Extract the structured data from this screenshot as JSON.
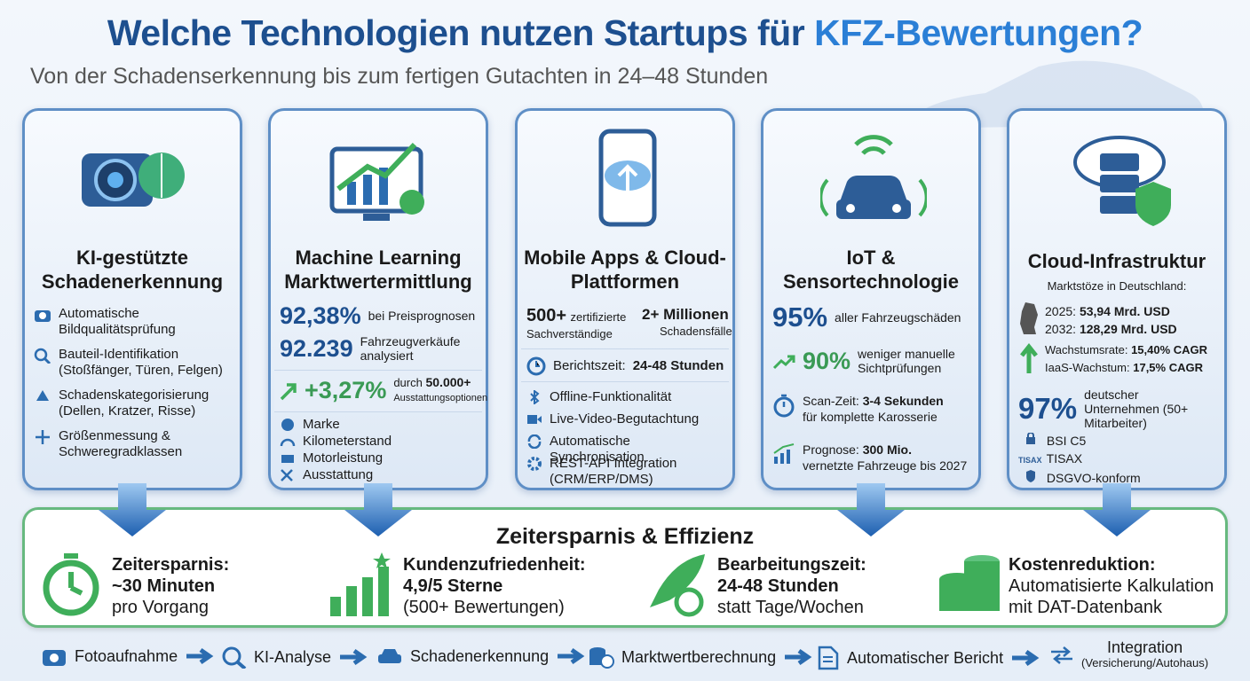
{
  "header": {
    "title_main": "Welche Technologien nutzen Startups für",
    "title_highlight": "KFZ-Bewertungen?",
    "subtitle": "Von der Schadenserkennung bis zum fertigen Gutachten in 24–48 Stunden"
  },
  "cards": [
    {
      "title": "KI-gestützte Schadenerkennung",
      "items": [
        "Automatische Bildqualitätsprüfung",
        "Bauteil-Identifikation (Stoßfänger, Türen, Felgen)",
        "Schadenskategorisierung (Dellen, Kratzer, Risse)",
        "Größenmessung & Schweregradklassen"
      ]
    },
    {
      "title": "Machine Learning Marktwertermittlung",
      "stats": [
        {
          "value": "92,38%",
          "label": "bei Preisprognosen"
        },
        {
          "value": "92.239",
          "label": "Fahrzeugverkäufe analysiert"
        },
        {
          "value": "+3,27%",
          "label": "durch",
          "label_bold": "50.000+",
          "label_rest": "Ausstattungsoptionen"
        }
      ],
      "items": [
        "Marke",
        "Kilometerstand",
        "Motorleistung",
        "Ausstattung"
      ]
    },
    {
      "title": "Mobile Apps & Cloud-Plattformen",
      "stats": [
        {
          "value": "500+",
          "label": "zertifizierte Sachverständige"
        },
        {
          "value": "2+ Millionen",
          "label": "Schadensfälle"
        }
      ],
      "report": {
        "label": "Berichtszeit:",
        "value": "24-48 Stunden"
      },
      "items": [
        "Offline-Funktionalität",
        "Live-Video-Begutachtung",
        "Automatische Synchronisation",
        "REST-API Integration (CRM/ERP/DMS)"
      ]
    },
    {
      "title": "IoT & Sensortechnologie",
      "stats": [
        {
          "value": "95%",
          "label": "aller Fahrzeugschäden"
        },
        {
          "value": "90%",
          "label": "weniger manuelle Sichtprüfungen"
        }
      ],
      "scan": {
        "label": "Scan-Zeit:",
        "bold": "3-4 Sekunden",
        "rest": "für komplette Karosserie"
      },
      "forecast": {
        "label": "Prognose:",
        "bold": "300 Mio.",
        "rest": "vernetzte Fahrzeuge bis 2027"
      }
    },
    {
      "title": "Cloud-Infrastruktur",
      "subtitle": "Marktstöze in Deutschland:",
      "market": [
        {
          "label": "2025:",
          "value": "53,94 Mrd. USD"
        },
        {
          "label": "2032:",
          "value": "128,29 Mrd. USD"
        }
      ],
      "growth": [
        {
          "label": "Wachstumsrate:",
          "value": "15,40% CAGR"
        },
        {
          "label": "IaaS-Wachstum:",
          "value": "17,5% CAGR"
        }
      ],
      "stat": {
        "value": "97%",
        "label": "deutscher Unternehmen (50+ Mitarbeiter)"
      },
      "cert_badge": "TISAX",
      "certs": [
        "BSI C5",
        "TISAX",
        "DSGVO-konform"
      ]
    }
  ],
  "efficiency": {
    "title": "Zeitersparnis & Effizienz",
    "items": [
      {
        "title": "Zeitersparnis:",
        "value": "~30 Minuten",
        "note": "pro Vorgang"
      },
      {
        "title": "Kundenzufriedenheit:",
        "value": "4,9/5 Sterne",
        "note": "(500+ Bewertungen)"
      },
      {
        "title": "Bearbeitungszeit:",
        "value": "24-48 Stunden",
        "note": "statt Tage/Wochen"
      },
      {
        "title": "Kostenreduktion:",
        "value": "Automatisierte Kalkulation",
        "note": "mit DAT-Datenbank"
      }
    ]
  },
  "process": {
    "steps": [
      "Fotoaufnahme",
      "KI-Analyse",
      "Schadenerkennung",
      "Marktwertberechnung",
      "Automatischer Bericht"
    ],
    "last": {
      "label": "Integration",
      "note": "(Versicherung/Autohaus)"
    }
  }
}
